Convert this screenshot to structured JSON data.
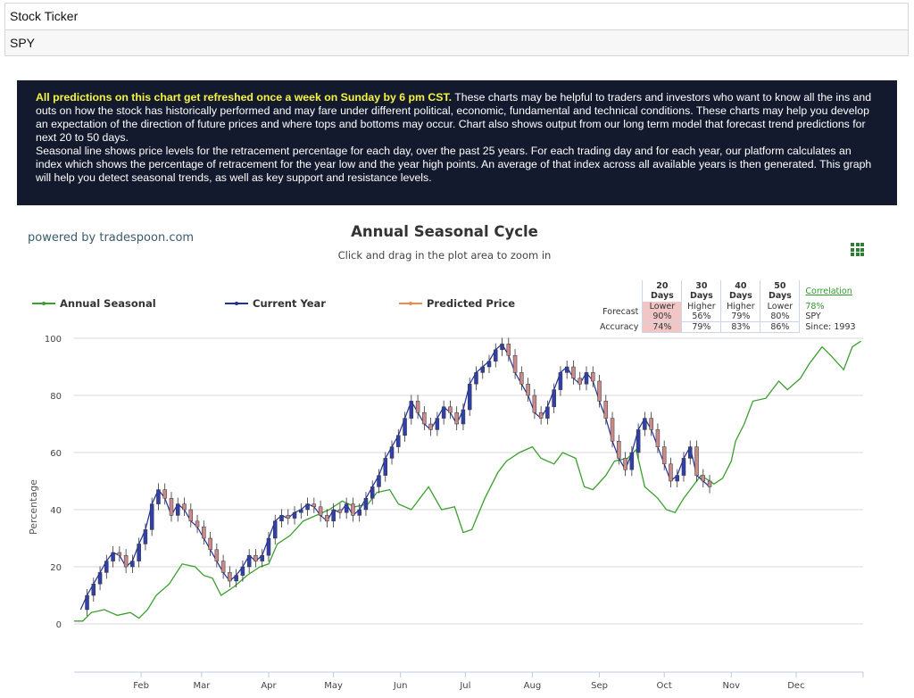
{
  "ticker": {
    "label": "Stock Ticker",
    "value": "SPY"
  },
  "info": {
    "highlight": "All predictions on this chart get refreshed once a week on Sunday by 6 pm CST.",
    "text1": " These charts may be helpful to traders and investors who want to know all the ins and outs on how the stock has historically performed and may fare under different political, economic, fundamental and technical conditions. These charts may help you develop an expectation of the direction of future prices and where tops and bottoms may occur. Chart also shows output from our long term model that forecast trend predictions for next 20 to 50 days.",
    "text2": "Seasonal line shows price levels for the retracement percentage for each day, over the past 25 years. For each trading day and for each year, our platform calculates an index which shows the percentage of retracement for the year low and the year high points. An average of that index across all available years is then generated. This graph will help you detect seasonal trends, as well as key support and resistance levels."
  },
  "powered_by": "powered by tradespoon.com",
  "forecast_table": {
    "headers": [
      "20 Days",
      "30 Days",
      "40 Days",
      "50 Days"
    ],
    "forecast_label": "Forecast",
    "accuracy_label": "Accuracy",
    "forecast": [
      {
        "dir": "Lower",
        "pct": "90%"
      },
      {
        "dir": "Higher",
        "pct": "56%"
      },
      {
        "dir": "Higher",
        "pct": "79%"
      },
      {
        "dir": "Lower",
        "pct": "80%"
      }
    ],
    "accuracy": [
      "74%",
      "79%",
      "83%",
      "86%"
    ],
    "correlation_label": "Correlation",
    "correlation_value": "78%",
    "symbol": "SPY",
    "since": "Since: 1993"
  },
  "colors": {
    "seasonal": "#3aa02d",
    "current": "#1f2f9e",
    "predicted": "#f08a4b",
    "candle_up": "#3040a8",
    "candle_down": "#c98a8a",
    "grid": "#d8d8d8",
    "panel_bg": "#141a2e",
    "highlight": "#f6f542"
  },
  "chart_data": {
    "type": "line",
    "title": "Annual Seasonal Cycle",
    "subtitle": "Click and drag in the plot area to zoom in",
    "ylabel": "Percentage",
    "ylim": [
      -15,
      100
    ],
    "yticks": [
      0,
      20,
      40,
      60,
      80,
      100
    ],
    "xlim": [
      0,
      365
    ],
    "x_tick_labels": [
      "Feb",
      "Mar",
      "Apr",
      "May",
      "Jun",
      "Jul",
      "Aug",
      "Sep",
      "Oct",
      "Nov",
      "Dec"
    ],
    "x_tick_days": [
      31,
      59,
      90,
      120,
      151,
      181,
      212,
      243,
      273,
      304,
      334
    ],
    "grid": true,
    "legend_position": "top-left",
    "series": [
      {
        "name": "Annual Seasonal",
        "x": [
          0,
          4,
          8,
          14,
          20,
          26,
          30,
          34,
          38,
          44,
          50,
          56,
          60,
          64,
          68,
          74,
          80,
          86,
          90,
          94,
          100,
          106,
          112,
          118,
          124,
          130,
          136,
          140,
          146,
          150,
          156,
          160,
          164,
          170,
          176,
          180,
          184,
          190,
          196,
          200,
          206,
          212,
          216,
          222,
          226,
          232,
          236,
          240,
          246,
          250,
          256,
          260,
          264,
          270,
          274,
          278,
          282,
          286,
          290,
          296,
          300,
          304,
          306,
          310,
          314,
          320,
          326,
          330,
          336,
          340,
          346,
          350,
          356,
          360,
          364
        ],
        "y": [
          1,
          1,
          4,
          5,
          3,
          4,
          2,
          5,
          10,
          14,
          21,
          20,
          17,
          16,
          10,
          13,
          17,
          20,
          21,
          28,
          31,
          36,
          38,
          40,
          43,
          41,
          42,
          46,
          47,
          42,
          40,
          44,
          48,
          40,
          41,
          32,
          33,
          44,
          53,
          57,
          60,
          62,
          58,
          56,
          60,
          58,
          48,
          47,
          52,
          57,
          58,
          61,
          48,
          44,
          40,
          39,
          44,
          48,
          52,
          49,
          51,
          57,
          64,
          70,
          78,
          79,
          85,
          82,
          86,
          91,
          97,
          94,
          89,
          97,
          99
        ]
      },
      {
        "name": "Current Year",
        "x": [
          3,
          6,
          9,
          12,
          15,
          18,
          21,
          24,
          27,
          30,
          33,
          36,
          39,
          42,
          45,
          48,
          51,
          54,
          57,
          60,
          63,
          66,
          69,
          72,
          75,
          78,
          81,
          84,
          87,
          90,
          93,
          96,
          99,
          102,
          105,
          108,
          111,
          114,
          117,
          120,
          123,
          126,
          129,
          132,
          135,
          138,
          141,
          144,
          147,
          150,
          153,
          156,
          159,
          162,
          165,
          168,
          171,
          174,
          177,
          180,
          183,
          186,
          189,
          192,
          195,
          198,
          201,
          204,
          207,
          210,
          213,
          216,
          219,
          222,
          225,
          228,
          231,
          234,
          237,
          240,
          243,
          246,
          249,
          252,
          255,
          258,
          261,
          264,
          267,
          270,
          273,
          276,
          279,
          282,
          285,
          288,
          291,
          294
        ],
        "y": [
          5,
          10,
          14,
          18,
          22,
          25,
          24,
          20,
          22,
          28,
          33,
          42,
          47,
          44,
          38,
          42,
          40,
          36,
          34,
          30,
          26,
          22,
          18,
          15,
          17,
          20,
          24,
          22,
          24,
          30,
          36,
          38,
          37,
          39,
          40,
          42,
          41,
          38,
          36,
          40,
          39,
          42,
          38,
          40,
          44,
          48,
          52,
          58,
          62,
          66,
          72,
          78,
          74,
          70,
          68,
          72,
          76,
          74,
          70,
          75,
          84,
          88,
          90,
          92,
          96,
          98,
          94,
          88,
          84,
          80,
          74,
          72,
          76,
          82,
          88,
          90,
          86,
          84,
          88,
          85,
          78,
          72,
          64,
          58,
          54,
          60,
          68,
          72,
          68,
          62,
          56,
          50,
          52,
          58,
          62,
          52,
          50,
          48
        ]
      },
      {
        "name": "Predicted Price",
        "x": [],
        "y": []
      }
    ]
  }
}
